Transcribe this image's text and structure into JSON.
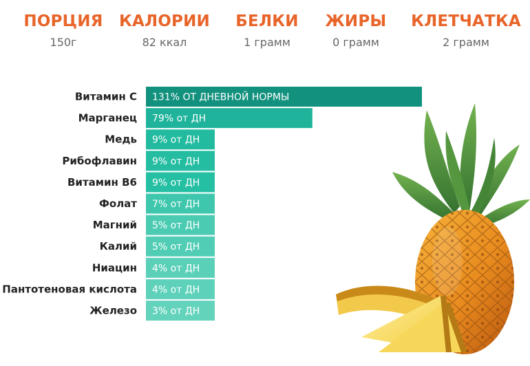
{
  "stats": [
    {
      "label": "ПОРЦИЯ",
      "value": "150г"
    },
    {
      "label": "КАЛОРИИ",
      "value": "82 ккал"
    },
    {
      "label": "БЕЛКИ",
      "value": "1 грамм"
    },
    {
      "label": "ЖИРЫ",
      "value": "0 грамм"
    },
    {
      "label": "КЛЕТЧАТКА",
      "value": "2 грамм"
    }
  ],
  "chart_data": {
    "type": "bar",
    "orientation": "horizontal",
    "categories": [
      "Витамин С",
      "Марганец",
      "Медь",
      "Рибофлавин",
      "Витамин В6",
      "Фолат",
      "Магний",
      "Калий",
      "Ниацин",
      "Пантотеновая кислота",
      "Железо"
    ],
    "values": [
      131,
      79,
      9,
      9,
      9,
      7,
      5,
      5,
      4,
      4,
      3
    ],
    "bar_labels": [
      "131% ОТ ДНЕВНОЙ НОРМЫ",
      "79% от ДН",
      "9% от ДН",
      "9% от ДН",
      "9% от ДН",
      "7% от ДН",
      "5% от ДН",
      "5% от ДН",
      "4% от ДН",
      "4% от ДН",
      "3% от ДН"
    ],
    "colors": [
      "#12917e",
      "#1eb39a",
      "#22bb9f",
      "#24bda2",
      "#25bfa3",
      "#3ec7ad",
      "#4ccbb3",
      "#52cdb5",
      "#5bd0b9",
      "#5ed1ba",
      "#64d3bc"
    ],
    "xlabel": "",
    "ylabel": ""
  },
  "colors": {
    "accent": "#e8652a",
    "text": "#222222",
    "muted": "#666666"
  },
  "decor": {
    "image": "pineapple-with-slices"
  }
}
